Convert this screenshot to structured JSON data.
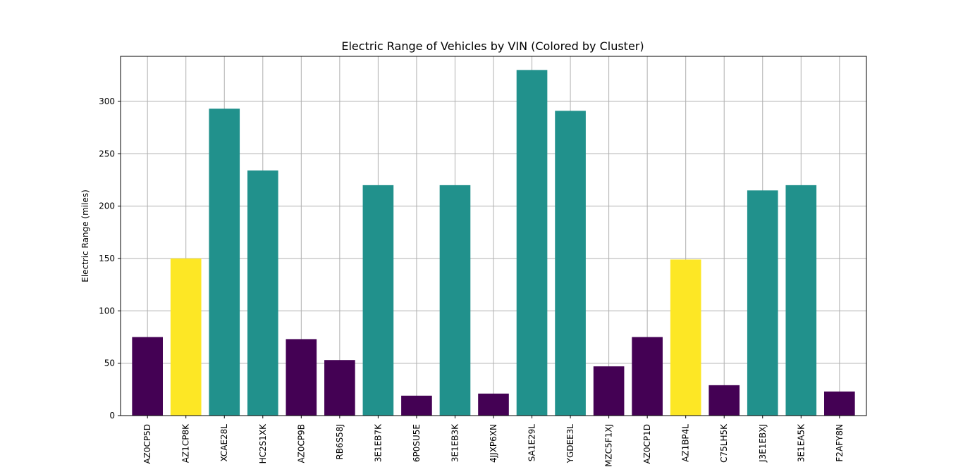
{
  "chart_data": {
    "type": "bar",
    "title": "Electric Range of Vehicles by VIN (Colored by Cluster)",
    "xlabel": "",
    "ylabel": "Electric Range (miles)",
    "ylim": [
      0,
      343
    ],
    "yticks": [
      0,
      50,
      100,
      150,
      200,
      250,
      300
    ],
    "grid": true,
    "legend": "none",
    "categories": [
      "AZ0CP5D",
      "AZ1CP8K",
      "XCAE28L",
      "HC2S1XK",
      "AZ0CP9B",
      "RB6S58J",
      "3E1EB7K",
      "6P0SU5E",
      "3E1EB3K",
      "4JJXP6XN",
      "SA1E29L",
      "YGDEE3L",
      "MZC5F1XJ",
      "AZ0CP1D",
      "AZ1BP4L",
      "C75LH5K",
      "J3E1EBXJ",
      "3E1EA5K",
      "F2AFY8N"
    ],
    "values": [
      75,
      150,
      293,
      234,
      73,
      53,
      220,
      19,
      220,
      21,
      330,
      291,
      47,
      75,
      149,
      29,
      215,
      220,
      23
    ],
    "clusters": [
      0,
      2,
      1,
      1,
      0,
      0,
      1,
      0,
      1,
      0,
      1,
      1,
      0,
      0,
      2,
      0,
      1,
      1,
      0
    ],
    "cluster_colors": [
      "#440154",
      "#21918c",
      "#fde725"
    ],
    "grid_color": "#b0b0b0",
    "axis_color": "#000000"
  }
}
